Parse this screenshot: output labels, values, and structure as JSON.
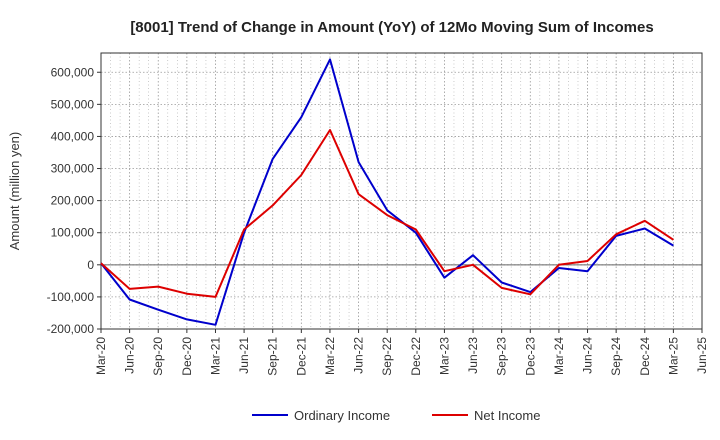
{
  "chart_data": {
    "type": "line",
    "title": "[8001]  Trend of Change in Amount (YoY) of 12Mo Moving Sum of Incomes",
    "ylabel": "Amount (million yen)",
    "xlabel": "",
    "ylim": [
      -200000,
      660000
    ],
    "yticks": [
      -200000,
      -100000,
      0,
      100000,
      200000,
      300000,
      400000,
      500000,
      600000
    ],
    "ytick_labels": [
      "-200,000",
      "-100,000",
      "0",
      "100,000",
      "200,000",
      "300,000",
      "400,000",
      "500,000",
      "600,000"
    ],
    "x_tick_labels": [
      "Mar-20",
      "Jun-20",
      "Sep-20",
      "Dec-20",
      "Mar-21",
      "Jun-21",
      "Sep-21",
      "Dec-21",
      "Mar-22",
      "Jun-22",
      "Sep-22",
      "Dec-22",
      "Mar-23",
      "Jun-23",
      "Sep-23",
      "Dec-23",
      "Mar-24",
      "Jun-24",
      "Sep-24",
      "Dec-24",
      "Mar-25",
      "Jun-25"
    ],
    "grid": true,
    "legend_position": "bottom",
    "series": [
      {
        "name": "Ordinary Income",
        "color": "#0000cc",
        "values": [
          5000,
          -108000,
          -140000,
          -170000,
          -187000,
          100000,
          330000,
          460000,
          640000,
          320000,
          170000,
          100000,
          -40000,
          30000,
          -55000,
          -85000,
          -10000,
          -20000,
          90000,
          113000,
          60000
        ]
      },
      {
        "name": "Net Income",
        "color": "#dd0000",
        "values": [
          5000,
          -75000,
          -68000,
          -90000,
          -100000,
          110000,
          185000,
          280000,
          420000,
          220000,
          155000,
          110000,
          -20000,
          0,
          -72000,
          -92000,
          0,
          12000,
          95000,
          137000,
          78000
        ]
      }
    ]
  }
}
